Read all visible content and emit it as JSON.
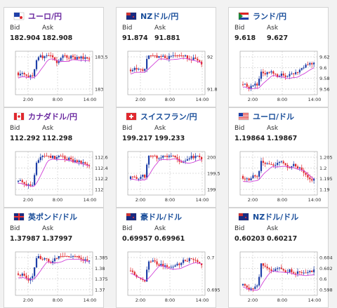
{
  "bid_label": "Bid",
  "ask_label": "Ask",
  "cards": [
    {
      "pair": "ユーロ/円",
      "flag": "eu-flag",
      "bid": "182.904",
      "ask": "182.908",
      "yticks": [
        "183.5",
        "183"
      ],
      "xticks": [
        "2:00",
        "8:00",
        "14:00"
      ]
    },
    {
      "pair": "NZドル/円",
      "flag": "nz-flag",
      "bid": "91.874",
      "ask": "91.881",
      "yticks": [
        "92",
        "91.8"
      ],
      "xticks": [
        "2:00",
        "8:00",
        "14:00"
      ]
    },
    {
      "pair": "ランド/円",
      "flag": "za-flag",
      "bid": "9.618",
      "ask": "9.627",
      "yticks": [
        "9.62",
        "9.6",
        "9.58",
        "9.56"
      ],
      "xticks": [
        "2:00",
        "8:00",
        "14:00"
      ]
    },
    {
      "pair": "カナダドル/円",
      "flag": "ca-flag",
      "bid": "112.292",
      "ask": "112.298",
      "yticks": [
        "112.6",
        "112.4",
        "112.2",
        "112"
      ],
      "xticks": [
        "2:00",
        "8:00",
        "14:00"
      ]
    },
    {
      "pair": "スイスフラン/円",
      "flag": "ch-flag",
      "bid": "199.217",
      "ask": "199.233",
      "yticks": [
        "200",
        "199.5",
        "199"
      ],
      "xticks": [
        "2:00",
        "8:00",
        "14:00"
      ]
    },
    {
      "pair": "ユーロ/ドル",
      "flag": "eu-us-flag",
      "bid": "1.19864",
      "ask": "1.19867",
      "yticks": [
        "1.205",
        "1.2",
        "1.195",
        "1.19"
      ],
      "xticks": [
        "2:00",
        "8:00",
        "14:00"
      ]
    },
    {
      "pair": "英ポンド/ドル",
      "flag": "gb-flag",
      "bid": "1.37987",
      "ask": "1.37997",
      "yticks": [
        "1.385",
        "1.38",
        "1.375",
        "1.37"
      ],
      "xticks": [
        "2:00",
        "8:00",
        "14:00"
      ]
    },
    {
      "pair": "豪ドル/ドル",
      "flag": "au-flag",
      "bid": "0.69957",
      "ask": "0.69961",
      "yticks": [
        "0.7",
        "0.695"
      ],
      "xticks": [
        "2:00",
        "8:00",
        "14:00"
      ]
    },
    {
      "pair": "NZドル/ドル",
      "flag": "nz-us-flag",
      "bid": "0.60203",
      "ask": "0.60217",
      "yticks": [
        "0.604",
        "0.602",
        "0.6",
        "0.598"
      ],
      "xticks": [
        "2:00",
        "8:00",
        "14:00"
      ]
    }
  ],
  "colors": {
    "up": "#1f3fa8",
    "down": "#e0282e",
    "ma": "#d040d8",
    "grid": "#bbbbbb",
    "link": "#1a4e9a"
  }
}
